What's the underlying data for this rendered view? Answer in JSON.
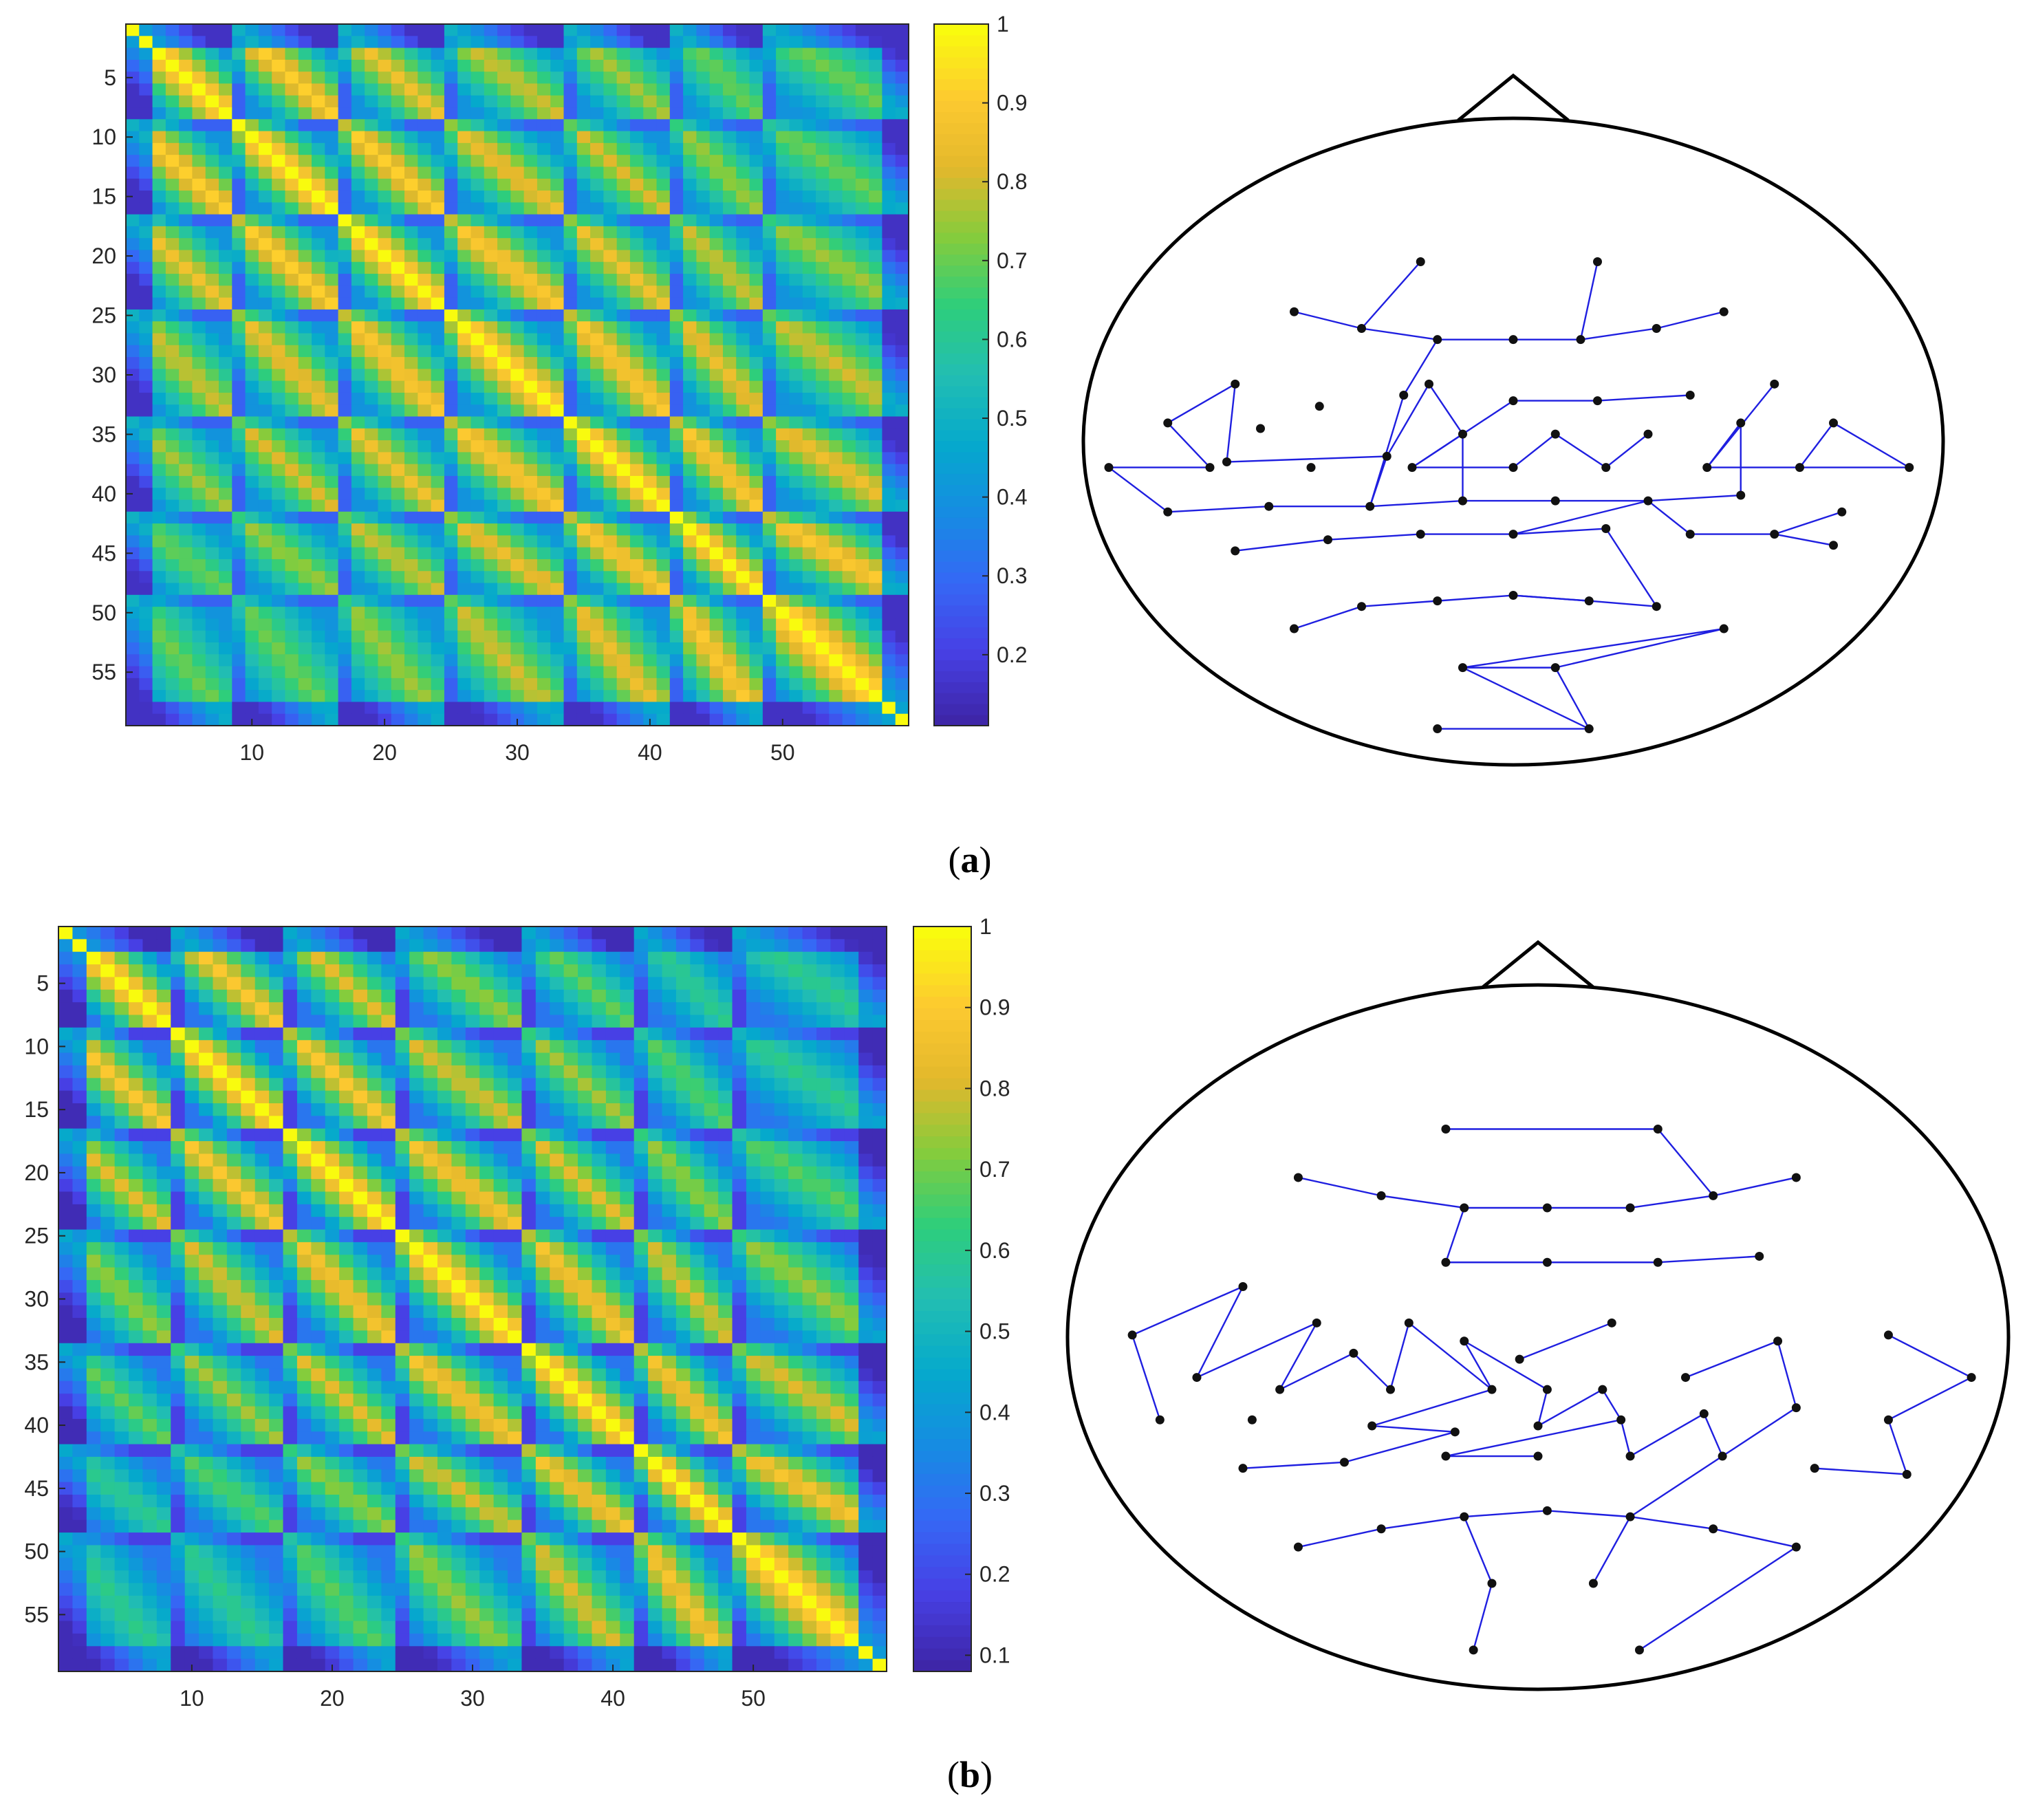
{
  "figure": {
    "panels": [
      {
        "label_open": "(",
        "label_letter": "a",
        "label_close": ")"
      },
      {
        "label_open": "(",
        "label_letter": "b",
        "label_close": ")"
      }
    ]
  },
  "chart_data": [
    {
      "panel": "a",
      "type": "heatmap",
      "title": "",
      "xlabel": "",
      "ylabel": "",
      "size": 59,
      "x_ticks": [
        10,
        20,
        30,
        40,
        50
      ],
      "y_ticks": [
        5,
        10,
        15,
        20,
        25,
        30,
        35,
        40,
        45,
        50,
        55
      ],
      "colorbar": {
        "range": [
          0.11,
          1.0
        ],
        "ticks": [
          0.2,
          0.3,
          0.4,
          0.5,
          0.6,
          0.7,
          0.8,
          0.9,
          1
        ],
        "colormap": "parula"
      },
      "block_boundaries": [
        8,
        16,
        24,
        33,
        41,
        48
      ],
      "value_model": {
        "diagonal_peak": 1.0,
        "off_block_peak_near": 0.92,
        "off_block_peak_far": 0.72,
        "between_channel_min": 0.4,
        "edge_falloff_low": 0.15,
        "note": "approximate similarity matrix: bright diamond-shaped blocks along diagonals, lower values between blocks"
      }
    },
    {
      "panel": "b",
      "type": "heatmap",
      "title": "",
      "xlabel": "",
      "ylabel": "",
      "size": 59,
      "x_ticks": [
        10,
        20,
        30,
        40,
        50
      ],
      "y_ticks": [
        5,
        10,
        15,
        20,
        25,
        30,
        35,
        40,
        45,
        50,
        55
      ],
      "colorbar": {
        "range": [
          0.08,
          1.0
        ],
        "ticks": [
          0.1,
          0.2,
          0.3,
          0.4,
          0.5,
          0.6,
          0.7,
          0.8,
          0.9,
          1
        ],
        "colormap": "parula"
      },
      "block_boundaries": [
        8,
        16,
        24,
        33,
        41,
        48
      ],
      "value_model": {
        "diagonal_peak": 1.0,
        "off_block_peak_near": 0.9,
        "off_block_peak_far": 0.62,
        "between_channel_min": 0.3,
        "edge_falloff_low": 0.1,
        "note": "approximate similarity matrix with stronger contrast and darker lines between blocks"
      }
    },
    {
      "panel": "a",
      "type": "network",
      "title": "",
      "description_units": "electrode positions on a normalized head map, x and y in [0,1]",
      "nodes": [
        [
          0.39,
          0.13
        ],
        [
          0.6,
          0.13
        ],
        [
          0.24,
          0.22
        ],
        [
          0.32,
          0.25
        ],
        [
          0.41,
          0.27
        ],
        [
          0.5,
          0.27
        ],
        [
          0.58,
          0.27
        ],
        [
          0.67,
          0.25
        ],
        [
          0.75,
          0.22
        ],
        [
          0.17,
          0.35
        ],
        [
          0.27,
          0.39
        ],
        [
          0.37,
          0.37
        ],
        [
          0.4,
          0.35
        ],
        [
          0.5,
          0.38
        ],
        [
          0.6,
          0.38
        ],
        [
          0.71,
          0.37
        ],
        [
          0.81,
          0.35
        ],
        [
          0.09,
          0.42
        ],
        [
          0.16,
          0.49
        ],
        [
          0.2,
          0.43
        ],
        [
          0.35,
          0.48
        ],
        [
          0.44,
          0.44
        ],
        [
          0.55,
          0.44
        ],
        [
          0.66,
          0.44
        ],
        [
          0.77,
          0.42
        ],
        [
          0.88,
          0.42
        ],
        [
          0.02,
          0.5
        ],
        [
          0.14,
          0.5
        ],
        [
          0.26,
          0.5
        ],
        [
          0.38,
          0.5
        ],
        [
          0.5,
          0.5
        ],
        [
          0.61,
          0.5
        ],
        [
          0.73,
          0.5
        ],
        [
          0.84,
          0.5
        ],
        [
          0.97,
          0.5
        ],
        [
          0.09,
          0.58
        ],
        [
          0.21,
          0.57
        ],
        [
          0.33,
          0.57
        ],
        [
          0.44,
          0.56
        ],
        [
          0.55,
          0.56
        ],
        [
          0.66,
          0.56
        ],
        [
          0.77,
          0.55
        ],
        [
          0.89,
          0.58
        ],
        [
          0.17,
          0.65
        ],
        [
          0.28,
          0.63
        ],
        [
          0.39,
          0.62
        ],
        [
          0.5,
          0.62
        ],
        [
          0.61,
          0.61
        ],
        [
          0.71,
          0.62
        ],
        [
          0.81,
          0.62
        ],
        [
          0.88,
          0.64
        ],
        [
          0.24,
          0.79
        ],
        [
          0.32,
          0.75
        ],
        [
          0.41,
          0.74
        ],
        [
          0.5,
          0.73
        ],
        [
          0.59,
          0.74
        ],
        [
          0.67,
          0.75
        ],
        [
          0.75,
          0.79
        ],
        [
          0.44,
          0.86
        ],
        [
          0.55,
          0.86
        ],
        [
          0.41,
          0.97
        ],
        [
          0.59,
          0.97
        ]
      ],
      "edges": [
        [
          2,
          3
        ],
        [
          3,
          4
        ],
        [
          4,
          5
        ],
        [
          5,
          6
        ],
        [
          6,
          7
        ],
        [
          7,
          8
        ],
        [
          3,
          0
        ],
        [
          6,
          1
        ],
        [
          4,
          11
        ],
        [
          9,
          18
        ],
        [
          9,
          17
        ],
        [
          17,
          27
        ],
        [
          27,
          26
        ],
        [
          26,
          35
        ],
        [
          18,
          20
        ],
        [
          20,
          12
        ],
        [
          12,
          21
        ],
        [
          21,
          29
        ],
        [
          29,
          30
        ],
        [
          11,
          37
        ],
        [
          37,
          20
        ],
        [
          13,
          14
        ],
        [
          14,
          15
        ],
        [
          13,
          29
        ],
        [
          30,
          22
        ],
        [
          22,
          31
        ],
        [
          31,
          23
        ],
        [
          16,
          32
        ],
        [
          32,
          33
        ],
        [
          33,
          34
        ],
        [
          34,
          25
        ],
        [
          25,
          33
        ],
        [
          24,
          32
        ],
        [
          21,
          38
        ],
        [
          38,
          39
        ],
        [
          39,
          40
        ],
        [
          40,
          41
        ],
        [
          41,
          24
        ],
        [
          35,
          36
        ],
        [
          36,
          37
        ],
        [
          37,
          38
        ],
        [
          42,
          49
        ],
        [
          49,
          50
        ],
        [
          43,
          44
        ],
        [
          44,
          45
        ],
        [
          45,
          46
        ],
        [
          46,
          47
        ],
        [
          47,
          56
        ],
        [
          56,
          55
        ],
        [
          55,
          54
        ],
        [
          48,
          40
        ],
        [
          48,
          49
        ],
        [
          46,
          40
        ],
        [
          59,
          61
        ],
        [
          51,
          52
        ],
        [
          52,
          53
        ],
        [
          53,
          54
        ],
        [
          54,
          55
        ],
        [
          57,
          58
        ],
        [
          58,
          61
        ],
        [
          61,
          60
        ],
        [
          57,
          59
        ],
        [
          59,
          58
        ]
      ]
    },
    {
      "panel": "b",
      "type": "network",
      "title": "",
      "description_units": "electrode positions on a normalized head map, x and y in [0,1]",
      "nodes": [
        [
          0.4,
          0.11
        ],
        [
          0.63,
          0.11
        ],
        [
          0.24,
          0.19
        ],
        [
          0.33,
          0.22
        ],
        [
          0.42,
          0.24
        ],
        [
          0.51,
          0.24
        ],
        [
          0.6,
          0.24
        ],
        [
          0.69,
          0.22
        ],
        [
          0.78,
          0.19
        ],
        [
          0.4,
          0.33
        ],
        [
          0.51,
          0.33
        ],
        [
          0.63,
          0.33
        ],
        [
          0.74,
          0.32
        ],
        [
          0.18,
          0.37
        ],
        [
          0.26,
          0.43
        ],
        [
          0.3,
          0.48
        ],
        [
          0.36,
          0.43
        ],
        [
          0.42,
          0.46
        ],
        [
          0.48,
          0.49
        ],
        [
          0.58,
          0.43
        ],
        [
          0.06,
          0.45
        ],
        [
          0.13,
          0.52
        ],
        [
          0.22,
          0.54
        ],
        [
          0.34,
          0.54
        ],
        [
          0.45,
          0.54
        ],
        [
          0.51,
          0.54
        ],
        [
          0.57,
          0.54
        ],
        [
          0.66,
          0.52
        ],
        [
          0.76,
          0.46
        ],
        [
          0.88,
          0.45
        ],
        [
          0.97,
          0.52
        ],
        [
          0.09,
          0.59
        ],
        [
          0.19,
          0.59
        ],
        [
          0.32,
          0.6
        ],
        [
          0.41,
          0.61
        ],
        [
          0.5,
          0.6
        ],
        [
          0.59,
          0.59
        ],
        [
          0.68,
          0.58
        ],
        [
          0.78,
          0.57
        ],
        [
          0.88,
          0.59
        ],
        [
          0.18,
          0.67
        ],
        [
          0.29,
          0.66
        ],
        [
          0.4,
          0.65
        ],
        [
          0.5,
          0.65
        ],
        [
          0.6,
          0.65
        ],
        [
          0.7,
          0.65
        ],
        [
          0.8,
          0.67
        ],
        [
          0.9,
          0.68
        ],
        [
          0.24,
          0.8
        ],
        [
          0.33,
          0.77
        ],
        [
          0.42,
          0.75
        ],
        [
          0.51,
          0.74
        ],
        [
          0.6,
          0.75
        ],
        [
          0.69,
          0.77
        ],
        [
          0.78,
          0.8
        ],
        [
          0.45,
          0.86
        ],
        [
          0.56,
          0.86
        ],
        [
          0.43,
          0.97
        ],
        [
          0.61,
          0.97
        ]
      ],
      "edges": [
        [
          0,
          1
        ],
        [
          1,
          7
        ],
        [
          2,
          3
        ],
        [
          3,
          4
        ],
        [
          4,
          5
        ],
        [
          5,
          6
        ],
        [
          6,
          7
        ],
        [
          7,
          8
        ],
        [
          4,
          9
        ],
        [
          9,
          10
        ],
        [
          10,
          11
        ],
        [
          11,
          12
        ],
        [
          20,
          13
        ],
        [
          13,
          21
        ],
        [
          20,
          31
        ],
        [
          21,
          14
        ],
        [
          14,
          22
        ],
        [
          22,
          15
        ],
        [
          15,
          23
        ],
        [
          23,
          16
        ],
        [
          16,
          24
        ],
        [
          24,
          17
        ],
        [
          17,
          25
        ],
        [
          18,
          19
        ],
        [
          24,
          33
        ],
        [
          33,
          34
        ],
        [
          34,
          41
        ],
        [
          41,
          40
        ],
        [
          25,
          35
        ],
        [
          35,
          26
        ],
        [
          26,
          36
        ],
        [
          36,
          44
        ],
        [
          44,
          37
        ],
        [
          27,
          28
        ],
        [
          28,
          38
        ],
        [
          38,
          45
        ],
        [
          29,
          30
        ],
        [
          30,
          39
        ],
        [
          39,
          47
        ],
        [
          47,
          46
        ],
        [
          42,
          43
        ],
        [
          42,
          36
        ],
        [
          37,
          45
        ],
        [
          45,
          52
        ],
        [
          48,
          49
        ],
        [
          49,
          50
        ],
        [
          50,
          51
        ],
        [
          51,
          52
        ],
        [
          52,
          53
        ],
        [
          53,
          54
        ],
        [
          50,
          55
        ],
        [
          55,
          57
        ],
        [
          52,
          56
        ],
        [
          54,
          58
        ]
      ]
    }
  ]
}
